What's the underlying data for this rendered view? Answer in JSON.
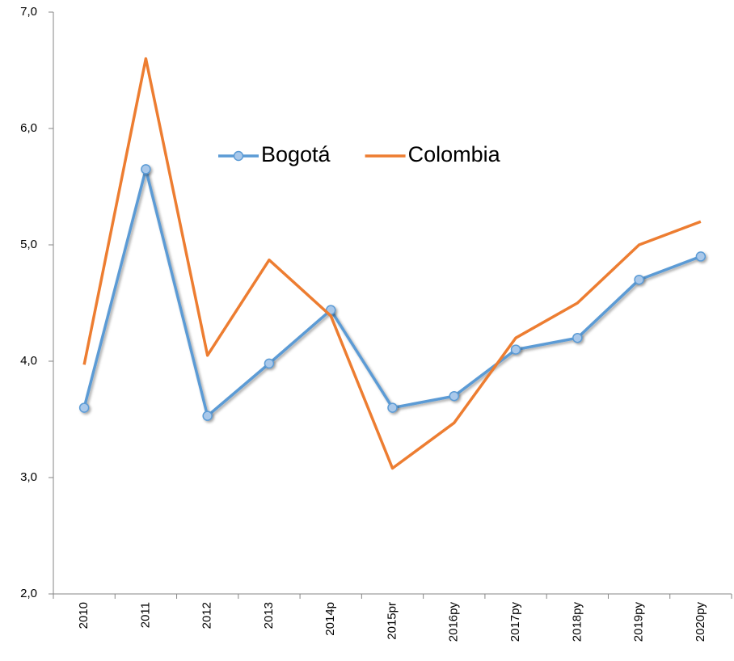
{
  "chart_data": {
    "type": "line",
    "categories": [
      "2010",
      "2011",
      "2012",
      "2013",
      "2014p",
      "2015pr",
      "2016py",
      "2017py",
      "2018py",
      "2019py",
      "2020py"
    ],
    "series": [
      {
        "name": "Bogotá",
        "color": "#5b9bd5",
        "marker_fill": "#a9c8ea",
        "markers": true,
        "values": [
          3.6,
          5.65,
          3.53,
          3.98,
          4.44,
          3.6,
          3.7,
          4.1,
          4.2,
          4.7,
          4.9
        ]
      },
      {
        "name": "Colombia",
        "color": "#ed7d31",
        "markers": false,
        "values": [
          3.97,
          6.6,
          4.05,
          4.87,
          4.39,
          3.08,
          3.47,
          4.2,
          4.5,
          5.0,
          5.2
        ]
      }
    ],
    "ylim": [
      2,
      7
    ],
    "yticks": [
      {
        "value": 2,
        "label": "2,0"
      },
      {
        "value": 3,
        "label": "3,0"
      },
      {
        "value": 4,
        "label": "4,0"
      },
      {
        "value": 5,
        "label": "5,0"
      },
      {
        "value": 6,
        "label": "6,0"
      },
      {
        "value": 7,
        "label": "7,0"
      }
    ],
    "grid": false
  }
}
